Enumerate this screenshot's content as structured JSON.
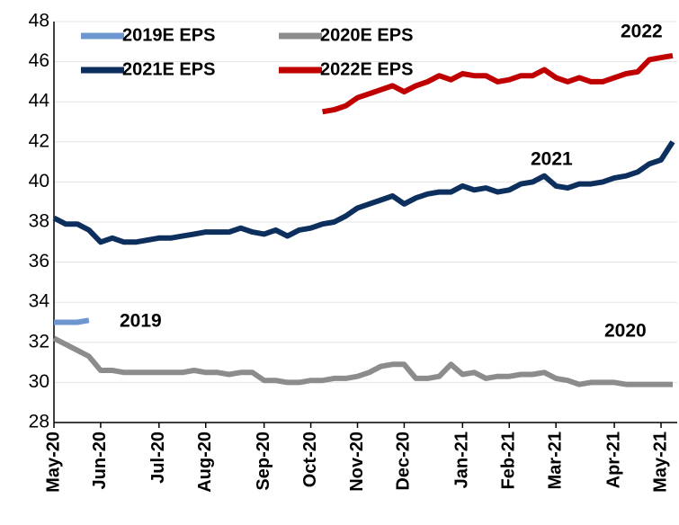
{
  "chart_data": {
    "type": "line",
    "categories": [
      "May-20",
      null,
      null,
      null,
      "Jun-20",
      null,
      null,
      null,
      null,
      "Jul-20",
      null,
      null,
      null,
      "Aug-20",
      null,
      null,
      null,
      null,
      "Sep-20",
      null,
      null,
      null,
      "Oct-20",
      null,
      null,
      null,
      "Nov-20",
      null,
      null,
      null,
      "Dec-20",
      null,
      null,
      null,
      null,
      "Jan-21",
      null,
      null,
      null,
      "Feb-21",
      null,
      null,
      null,
      "Mar-21",
      null,
      null,
      null,
      null,
      "Apr-21",
      null,
      null,
      null,
      "May-21",
      null
    ],
    "series": [
      {
        "name": "2019E EPS",
        "color": "#6f97cf",
        "values": [
          33.0,
          33.0,
          33.0,
          33.1,
          null,
          null,
          null,
          null,
          null,
          null,
          null,
          null,
          null,
          null,
          null,
          null,
          null,
          null,
          null,
          null,
          null,
          null,
          null,
          null,
          null,
          null,
          null,
          null,
          null,
          null,
          null,
          null,
          null,
          null,
          null,
          null,
          null,
          null,
          null,
          null,
          null,
          null,
          null,
          null,
          null,
          null,
          null,
          null,
          null,
          null,
          null,
          null,
          null,
          null
        ]
      },
      {
        "name": "2020E EPS",
        "color": "#8c8c8c",
        "values": [
          32.2,
          31.9,
          31.6,
          31.3,
          30.6,
          30.6,
          30.5,
          30.5,
          30.5,
          30.5,
          30.5,
          30.5,
          30.6,
          30.5,
          30.5,
          30.4,
          30.5,
          30.5,
          30.1,
          30.1,
          30.0,
          30.0,
          30.1,
          30.1,
          30.2,
          30.2,
          30.3,
          30.5,
          30.8,
          30.9,
          30.9,
          30.2,
          30.2,
          30.3,
          30.9,
          30.4,
          30.5,
          30.2,
          30.3,
          30.3,
          30.4,
          30.4,
          30.5,
          30.2,
          30.1,
          29.9,
          30.0,
          30.0,
          30.0,
          29.9,
          29.9,
          29.9,
          29.9,
          29.9
        ]
      },
      {
        "name": "2021E EPS",
        "color": "#0d2f5e",
        "values": [
          38.2,
          37.9,
          37.9,
          37.6,
          37.0,
          37.2,
          37.0,
          37.0,
          37.1,
          37.2,
          37.2,
          37.3,
          37.4,
          37.5,
          37.5,
          37.5,
          37.7,
          37.5,
          37.4,
          37.6,
          37.3,
          37.6,
          37.7,
          37.9,
          38.0,
          38.3,
          38.7,
          38.9,
          39.1,
          39.3,
          38.9,
          39.2,
          39.4,
          39.5,
          39.5,
          39.8,
          39.6,
          39.7,
          39.5,
          39.6,
          39.9,
          40.0,
          40.3,
          39.8,
          39.7,
          39.9,
          39.9,
          40.0,
          40.2,
          40.3,
          40.5,
          40.9,
          41.1,
          42.0
        ]
      },
      {
        "name": "2022E EPS",
        "color": "#c00000",
        "values": [
          null,
          null,
          null,
          null,
          null,
          null,
          null,
          null,
          null,
          null,
          null,
          null,
          null,
          null,
          null,
          null,
          null,
          null,
          null,
          null,
          null,
          null,
          null,
          43.5,
          43.6,
          43.8,
          44.2,
          44.4,
          44.6,
          44.8,
          44.5,
          44.8,
          45.0,
          45.3,
          45.1,
          45.4,
          45.3,
          45.3,
          45.0,
          45.1,
          45.3,
          45.3,
          45.6,
          45.2,
          45.0,
          45.2,
          45.0,
          45.0,
          45.2,
          45.4,
          45.5,
          46.1,
          46.2,
          46.3
        ]
      }
    ],
    "annotations": [
      {
        "text": "2019",
        "color": "#6f97cf"
      },
      {
        "text": "2020",
        "color": "#8c8c8c"
      },
      {
        "text": "2021",
        "color": "#0d2f5e"
      },
      {
        "text": "2022",
        "color": "#c00000"
      }
    ],
    "ylim": [
      28,
      48
    ],
    "yticks": [
      28,
      30,
      32,
      34,
      36,
      38,
      40,
      42,
      44,
      46,
      48
    ],
    "grid": true
  }
}
